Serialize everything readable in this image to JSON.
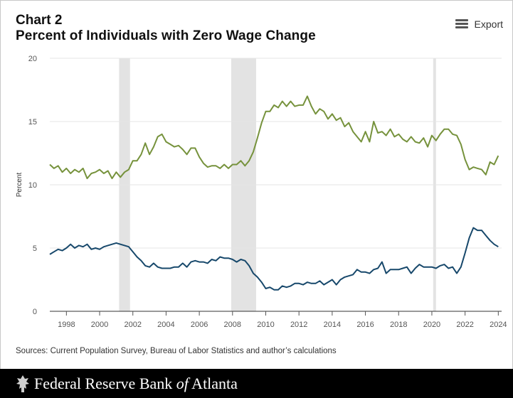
{
  "header": {
    "label": "Chart 2",
    "title": "Percent of Individuals with Zero Wage Change",
    "export_label": "Export"
  },
  "footer": {
    "source": "Sources: Current Population Survey, Bureau of Labor Statistics and author’s calculations",
    "brand_pre": "Federal Reserve Bank ",
    "brand_of": "of",
    "brand_post": " Atlanta"
  },
  "chart_data": {
    "type": "line",
    "ylabel": "Percent",
    "ylim": [
      0,
      20
    ],
    "yticks": [
      0,
      5,
      10,
      15,
      20
    ],
    "xlim": [
      1997.0,
      2024.2
    ],
    "xticks": [
      1998,
      2000,
      2002,
      2004,
      2006,
      2008,
      2010,
      2012,
      2014,
      2016,
      2018,
      2020,
      2022,
      2024
    ],
    "grid": "horizontal",
    "recessions": [
      [
        2001.17,
        2001.83
      ],
      [
        2007.92,
        2009.42
      ],
      [
        2020.08,
        2020.25
      ]
    ],
    "colors": {
      "upper": "#76923c",
      "lower": "#17486b",
      "recession": "#e3e3e3"
    },
    "series": [
      {
        "x": [
          1997.0,
          1997.25,
          1997.5,
          1997.75,
          1998.0,
          1998.25,
          1998.5,
          1998.75,
          1999.0,
          1999.25,
          1999.5,
          1999.75,
          2000.0,
          2000.25,
          2000.5,
          2000.75,
          2001.0,
          2001.25,
          2001.5,
          2001.75,
          2002.0,
          2002.25,
          2002.5,
          2002.75,
          2003.0,
          2003.25,
          2003.5,
          2003.75,
          2004.0,
          2004.25,
          2004.5,
          2004.75,
          2005.0,
          2005.25,
          2005.5,
          2005.75,
          2006.0,
          2006.25,
          2006.5,
          2006.75,
          2007.0,
          2007.25,
          2007.5,
          2007.75,
          2008.0,
          2008.25,
          2008.5,
          2008.75,
          2009.0,
          2009.25,
          2009.5,
          2009.75,
          2010.0,
          2010.25,
          2010.5,
          2010.75,
          2011.0,
          2011.25,
          2011.5,
          2011.75,
          2012.0,
          2012.25,
          2012.5,
          2012.75,
          2013.0,
          2013.25,
          2013.5,
          2013.75,
          2014.0,
          2014.25,
          2014.5,
          2014.75,
          2015.0,
          2015.25,
          2015.5,
          2015.75,
          2016.0,
          2016.25,
          2016.5,
          2016.75,
          2017.0,
          2017.25,
          2017.5,
          2017.75,
          2018.0,
          2018.25,
          2018.5,
          2018.75,
          2019.0,
          2019.25,
          2019.5,
          2019.75,
          2020.0,
          2020.25,
          2020.5,
          2020.75,
          2021.0,
          2021.25,
          2021.5,
          2021.75,
          2022.0,
          2022.25,
          2022.5,
          2022.75,
          2023.0,
          2023.25,
          2023.5,
          2023.75,
          2024.0
        ],
        "values": [
          11.6,
          11.3,
          11.5,
          11.0,
          11.3,
          10.9,
          11.2,
          11.0,
          11.3,
          10.5,
          10.9,
          11.0,
          11.2,
          10.9,
          11.1,
          10.5,
          11.0,
          10.6,
          11.0,
          11.2,
          11.9,
          11.9,
          12.4,
          13.3,
          12.4,
          13.0,
          13.8,
          14.0,
          13.4,
          13.2,
          13.0,
          13.1,
          12.8,
          12.4,
          12.9,
          12.9,
          12.2,
          11.7,
          11.4,
          11.5,
          11.5,
          11.3,
          11.6,
          11.3,
          11.6,
          11.6,
          11.9,
          11.5,
          11.9,
          12.6,
          13.7,
          14.9,
          15.8,
          15.8,
          16.3,
          16.1,
          16.6,
          16.2,
          16.6,
          16.2,
          16.3,
          16.3,
          17.0,
          16.2,
          15.6,
          16.0,
          15.8,
          15.2,
          15.6,
          15.1,
          15.3,
          14.6,
          14.9,
          14.2,
          13.8,
          13.4,
          14.2,
          13.4,
          15.0,
          14.1,
          14.2,
          13.9,
          14.4,
          13.8,
          14.0,
          13.6,
          13.4,
          13.8,
          13.4,
          13.3,
          13.7,
          13.0,
          13.9,
          13.5,
          14.0,
          14.4,
          14.4,
          14.0,
          13.9,
          13.2,
          12.0,
          11.2,
          11.4,
          11.3,
          11.2,
          10.8,
          11.8,
          11.6,
          12.3
        ]
      },
      {
        "x": [
          1997.0,
          1997.25,
          1997.5,
          1997.75,
          1998.0,
          1998.25,
          1998.5,
          1998.75,
          1999.0,
          1999.25,
          1999.5,
          1999.75,
          2000.0,
          2000.25,
          2000.5,
          2000.75,
          2001.0,
          2001.25,
          2001.5,
          2001.75,
          2002.0,
          2002.25,
          2002.5,
          2002.75,
          2003.0,
          2003.25,
          2003.5,
          2003.75,
          2004.0,
          2004.25,
          2004.5,
          2004.75,
          2005.0,
          2005.25,
          2005.5,
          2005.75,
          2006.0,
          2006.25,
          2006.5,
          2006.75,
          2007.0,
          2007.25,
          2007.5,
          2007.75,
          2008.0,
          2008.25,
          2008.5,
          2008.75,
          2009.0,
          2009.25,
          2009.5,
          2009.75,
          2010.0,
          2010.25,
          2010.5,
          2010.75,
          2011.0,
          2011.25,
          2011.5,
          2011.75,
          2012.0,
          2012.25,
          2012.5,
          2012.75,
          2013.0,
          2013.25,
          2013.5,
          2013.75,
          2014.0,
          2014.25,
          2014.5,
          2014.75,
          2015.0,
          2015.25,
          2015.5,
          2015.75,
          2016.0,
          2016.25,
          2016.5,
          2016.75,
          2017.0,
          2017.25,
          2017.5,
          2017.75,
          2018.0,
          2018.25,
          2018.5,
          2018.75,
          2019.0,
          2019.25,
          2019.5,
          2019.75,
          2020.0,
          2020.25,
          2020.5,
          2020.75,
          2021.0,
          2021.25,
          2021.5,
          2021.75,
          2022.0,
          2022.25,
          2022.5,
          2022.75,
          2023.0,
          2023.25,
          2023.5,
          2023.75,
          2024.0
        ],
        "values": [
          4.5,
          4.7,
          4.9,
          4.8,
          5.0,
          5.3,
          5.0,
          5.2,
          5.1,
          5.3,
          4.9,
          5.0,
          4.9,
          5.1,
          5.2,
          5.3,
          5.4,
          5.3,
          5.2,
          5.1,
          4.7,
          4.3,
          4.0,
          3.6,
          3.5,
          3.8,
          3.5,
          3.4,
          3.4,
          3.4,
          3.5,
          3.5,
          3.8,
          3.5,
          3.9,
          4.0,
          3.9,
          3.9,
          3.8,
          4.1,
          4.0,
          4.3,
          4.2,
          4.2,
          4.1,
          3.9,
          4.1,
          4.0,
          3.6,
          3.0,
          2.7,
          2.3,
          1.8,
          1.9,
          1.7,
          1.7,
          2.0,
          1.9,
          2.0,
          2.2,
          2.2,
          2.1,
          2.3,
          2.2,
          2.2,
          2.4,
          2.1,
          2.3,
          2.5,
          2.1,
          2.5,
          2.7,
          2.8,
          2.9,
          3.3,
          3.1,
          3.1,
          3.0,
          3.3,
          3.4,
          3.9,
          3.0,
          3.3,
          3.3,
          3.3,
          3.4,
          3.5,
          3.0,
          3.4,
          3.7,
          3.5,
          3.5,
          3.5,
          3.4,
          3.6,
          3.7,
          3.4,
          3.5,
          3.0,
          3.5,
          4.6,
          5.8,
          6.6,
          6.4,
          6.4,
          6.0,
          5.6,
          5.3,
          5.1
        ]
      }
    ]
  }
}
